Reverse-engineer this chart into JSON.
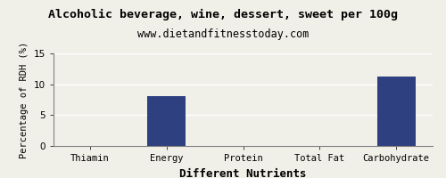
{
  "title": "Alcoholic beverage, wine, dessert, sweet per 100g",
  "subtitle": "www.dietandfitnesstoday.com",
  "xlabel": "Different Nutrients",
  "ylabel": "Percentage of RDH (%)",
  "categories": [
    "Thiamin",
    "Energy",
    "Protein",
    "Total Fat",
    "Carbohydrate"
  ],
  "values": [
    0.0,
    8.1,
    0.0,
    0.0,
    11.3
  ],
  "bar_color": "#2e4080",
  "ylim": [
    0,
    15
  ],
  "yticks": [
    0,
    5,
    10,
    15
  ],
  "background_color": "#f0f0e8",
  "title_fontsize": 9.5,
  "subtitle_fontsize": 8.5,
  "xlabel_fontsize": 9,
  "ylabel_fontsize": 7.5,
  "tick_fontsize": 7.5
}
